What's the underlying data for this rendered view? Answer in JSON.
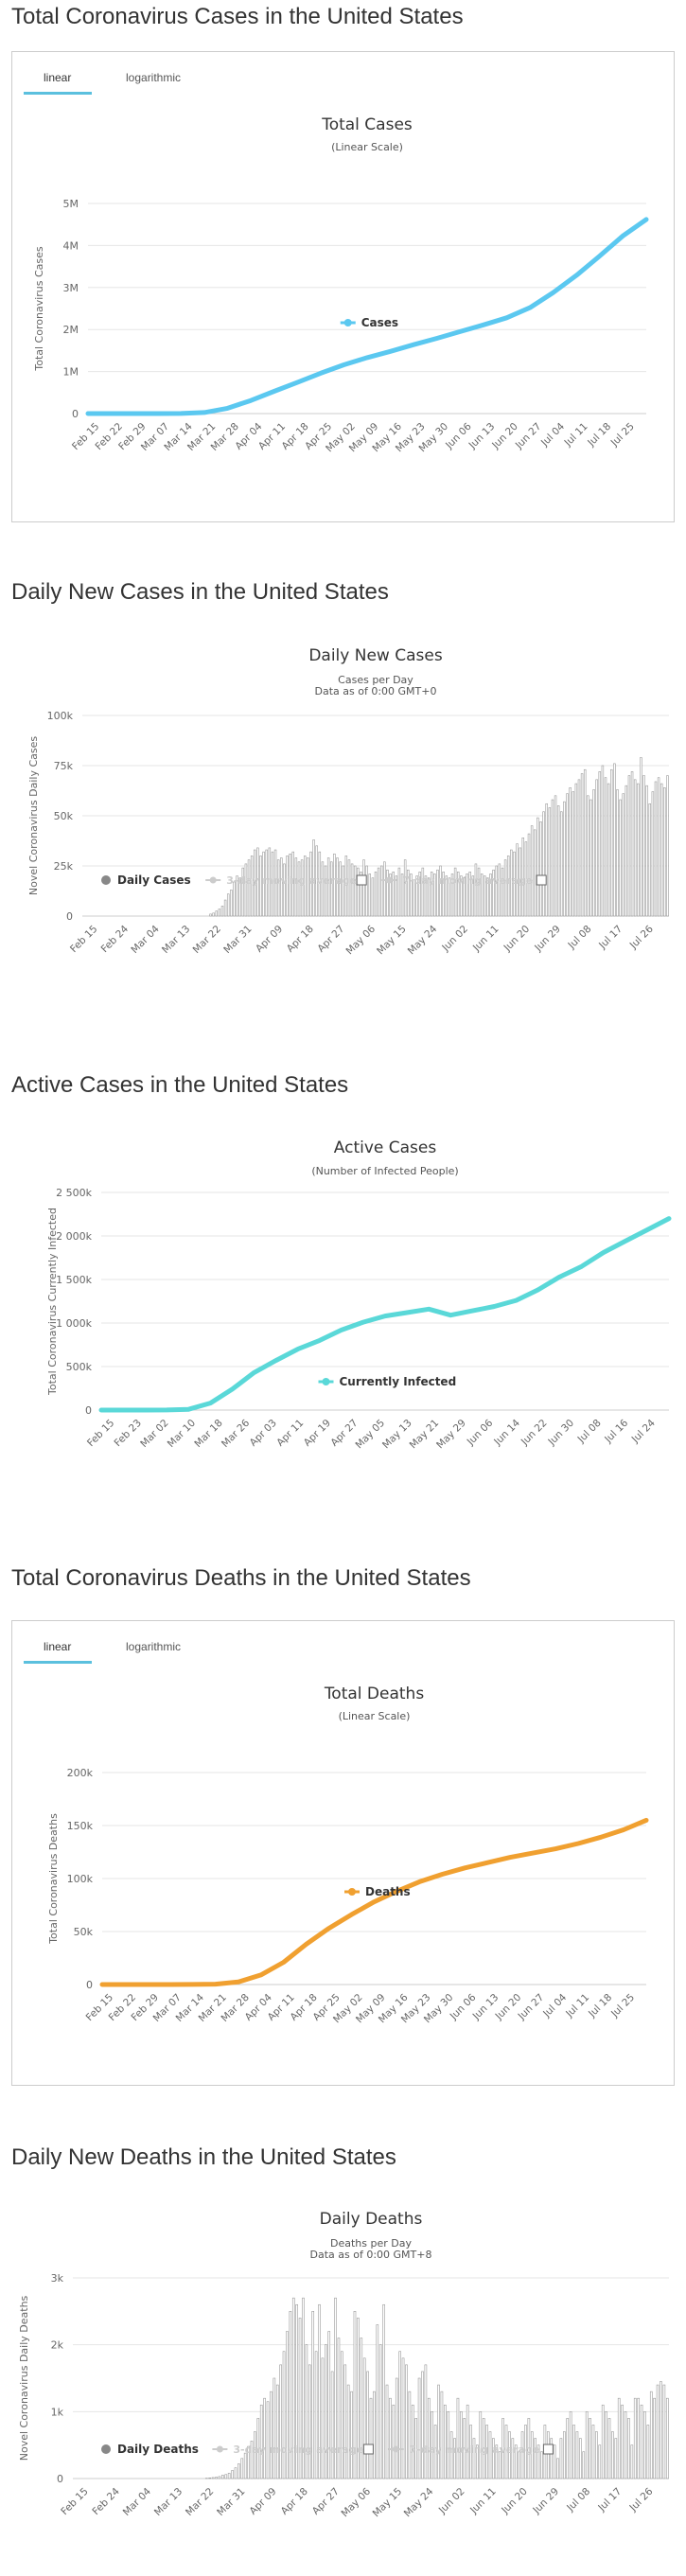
{
  "headings": {
    "cases": "Total Coronavirus Cases in the United States",
    "daily_cases": "Daily New Cases in the United States",
    "active": "Active Cases in the United States",
    "deaths": "Total Coronavirus Deaths in the United States",
    "daily_deaths": "Daily New Deaths in the United States"
  },
  "tabs_cases": {
    "linear": "linear",
    "logarithmic": "logarithmic"
  },
  "tabs_deaths": {
    "linear": "linear",
    "logarithmic": "logarithmic"
  },
  "colors": {
    "cases": "#5bc8f0",
    "active": "#5ad8d8",
    "deaths": "#f0a030",
    "bars": "#999999",
    "tab_accent": "#5bc0de"
  },
  "chart_data": [
    {
      "id": "total_cases",
      "type": "line",
      "title": "Total Cases",
      "subtitle": "(Linear Scale)",
      "ylabel": "Total Coronavirus Cases",
      "ylim": [
        0,
        5000000
      ],
      "yticks": [
        "0",
        "1M",
        "2M",
        "3M",
        "4M",
        "5M"
      ],
      "x_labels": [
        "Feb 15",
        "Feb 22",
        "Feb 29",
        "Mar 07",
        "Mar 14",
        "Mar 21",
        "Mar 28",
        "Apr 04",
        "Apr 11",
        "Apr 18",
        "Apr 25",
        "May 02",
        "May 09",
        "May 16",
        "May 23",
        "May 30",
        "Jun 06",
        "Jun 13",
        "Jun 20",
        "Jun 27",
        "Jul 04",
        "Jul 11",
        "Jul 18",
        "Jul 25"
      ],
      "series": [
        {
          "name": "Cases",
          "values": [
            15,
            35,
            70,
            400,
            2900,
            25000,
            125000,
            310000,
            530000,
            740000,
            960000,
            1160000,
            1330000,
            1480000,
            1640000,
            1790000,
            1950000,
            2110000,
            2280000,
            2520000,
            2880000,
            3290000,
            3750000,
            4230000,
            4620000
          ]
        }
      ],
      "legend": [
        "Cases"
      ]
    },
    {
      "id": "daily_cases",
      "type": "bar",
      "title": "Daily New Cases",
      "subtitle": "Cases per Day",
      "subtitle2": "Data as of 0:00 GMT+0",
      "ylabel": "Novel Coronavirus Daily Cases",
      "ylim": [
        0,
        100000
      ],
      "yticks": [
        "0",
        "25k",
        "50k",
        "75k",
        "100k"
      ],
      "x_labels": [
        "Feb 15",
        "Feb 24",
        "Mar 04",
        "Mar 13",
        "Mar 22",
        "Mar 31",
        "Apr 09",
        "Apr 18",
        "Apr 27",
        "May 06",
        "May 15",
        "May 24",
        "Jun 02",
        "Jun 11",
        "Jun 20",
        "Jun 29",
        "Jul 08",
        "Jul 17",
        "Jul 26"
      ],
      "legend": [
        "Daily Cases",
        "3-day moving average",
        "7-day moving average"
      ],
      "series": [
        {
          "name": "Daily Cases",
          "values": [
            0,
            0,
            0,
            0,
            0,
            0,
            0,
            0,
            0,
            0,
            0,
            0,
            0,
            0,
            0,
            0,
            0,
            0,
            0,
            0,
            0,
            0,
            0,
            0,
            0,
            0,
            0,
            0,
            0,
            0,
            0,
            0,
            0,
            0,
            0,
            0,
            0,
            0,
            0,
            0,
            0,
            0,
            0,
            1000,
            1500,
            2500,
            3500,
            5000,
            8000,
            11000,
            13000,
            17000,
            20000,
            19000,
            24000,
            26000,
            28000,
            30000,
            33000,
            34000,
            30000,
            32000,
            33000,
            34000,
            32000,
            33000,
            28000,
            29000,
            26000,
            30000,
            31000,
            32000,
            29000,
            27000,
            28000,
            30000,
            29000,
            32000,
            38000,
            35000,
            32000,
            27000,
            25000,
            29000,
            27000,
            31000,
            29000,
            27000,
            25000,
            30000,
            28000,
            26000,
            25000,
            24000,
            22000,
            28000,
            25000,
            21000,
            19000,
            22000,
            24000,
            25000,
            27000,
            23000,
            21000,
            22000,
            20000,
            24000,
            21000,
            28000,
            23000,
            21000,
            18000,
            20000,
            22000,
            24000,
            20000,
            19000,
            22000,
            21000,
            23000,
            25000,
            22000,
            20000,
            19000,
            21000,
            24000,
            22000,
            20000,
            19000,
            21000,
            22000,
            20000,
            26000,
            24000,
            21000,
            20000,
            19000,
            21000,
            23000,
            25000,
            26000,
            24000,
            28000,
            30000,
            33000,
            32000,
            36000,
            34000,
            39000,
            37000,
            41000,
            45000,
            43000,
            49000,
            47000,
            52000,
            56000,
            54000,
            58000,
            60000,
            55000,
            52000,
            57000,
            61000,
            64000,
            62000,
            66000,
            68000,
            71000,
            73000,
            60000,
            58000,
            63000,
            68000,
            72000,
            75000,
            69000,
            66000,
            73000,
            76000,
            63000,
            58000,
            61000,
            65000,
            70000,
            72000,
            68000,
            66000,
            79000,
            70000,
            65000,
            56000,
            62000,
            67000,
            69000,
            66000,
            64000,
            70000
          ]
        }
      ]
    },
    {
      "id": "active_cases",
      "type": "line",
      "title": "Active Cases",
      "subtitle": "(Number of Infected People)",
      "ylabel": "Total Coronavirus Currently Infected",
      "ylim": [
        0,
        2500000
      ],
      "yticks": [
        "0",
        "500k",
        "1 000k",
        "1 500k",
        "2 000k",
        "2 500k"
      ],
      "x_labels": [
        "Feb 15",
        "Feb 23",
        "Mar 02",
        "Mar 10",
        "Mar 18",
        "Mar 26",
        "Apr 03",
        "Apr 11",
        "Apr 19",
        "Apr 27",
        "May 05",
        "May 13",
        "May 21",
        "May 29",
        "Jun 06",
        "Jun 14",
        "Jun 22",
        "Jun 30",
        "Jul 08",
        "Jul 16",
        "Jul 24"
      ],
      "series": [
        {
          "name": "Currently Infected",
          "values": [
            10,
            15,
            60,
            600,
            9000,
            80000,
            240000,
            430000,
            570000,
            700000,
            800000,
            920000,
            1010000,
            1080000,
            1120000,
            1160000,
            1090000,
            1140000,
            1190000,
            1260000,
            1380000,
            1530000,
            1650000,
            1810000,
            1940000,
            2070000,
            2200000
          ]
        }
      ],
      "legend": [
        "Currently Infected"
      ]
    },
    {
      "id": "total_deaths",
      "type": "line",
      "title": "Total Deaths",
      "subtitle": "(Linear Scale)",
      "ylabel": "Total Coronavirus Deaths",
      "ylim": [
        0,
        200000
      ],
      "yticks": [
        "0",
        "50k",
        "100k",
        "150k",
        "200k"
      ],
      "x_labels": [
        "Feb 15",
        "Feb 22",
        "Feb 29",
        "Mar 07",
        "Mar 14",
        "Mar 21",
        "Mar 28",
        "Apr 04",
        "Apr 11",
        "Apr 18",
        "Apr 25",
        "May 02",
        "May 09",
        "May 16",
        "May 23",
        "May 30",
        "Jun 06",
        "Jun 13",
        "Jun 20",
        "Jun 27",
        "Jul 04",
        "Jul 11",
        "Jul 18",
        "Jul 25"
      ],
      "series": [
        {
          "name": "Deaths",
          "values": [
            0,
            0,
            0,
            10,
            60,
            400,
            2400,
            9000,
            21000,
            38000,
            53000,
            66000,
            78000,
            88000,
            97000,
            104000,
            110000,
            115000,
            120000,
            124000,
            128000,
            133000,
            139000,
            146000,
            155000
          ]
        }
      ],
      "legend": [
        "Deaths"
      ]
    },
    {
      "id": "daily_deaths",
      "type": "bar",
      "title": "Daily Deaths",
      "subtitle": "Deaths per Day",
      "subtitle2": "Data as of 0:00 GMT+8",
      "ylabel": "Novel Coronavirus Daily Deaths",
      "ylim": [
        0,
        3000
      ],
      "yticks": [
        "0",
        "1k",
        "2k",
        "3k"
      ],
      "x_labels": [
        "Feb 15",
        "Feb 24",
        "Mar 04",
        "Mar 13",
        "Mar 22",
        "Mar 31",
        "Apr 09",
        "Apr 18",
        "Apr 27",
        "May 06",
        "May 15",
        "May 24",
        "Jun 02",
        "Jun 11",
        "Jun 20",
        "Jun 29",
        "Jul 08",
        "Jul 17",
        "Jul 26"
      ],
      "legend": [
        "Daily Deaths",
        "3-day moving average",
        "7-day moving average"
      ],
      "series": [
        {
          "name": "Daily Deaths",
          "values": [
            0,
            0,
            0,
            0,
            0,
            0,
            0,
            0,
            0,
            0,
            0,
            0,
            0,
            0,
            0,
            0,
            0,
            0,
            0,
            0,
            0,
            0,
            0,
            0,
            0,
            0,
            0,
            0,
            0,
            0,
            0,
            0,
            0,
            0,
            0,
            0,
            0,
            0,
            0,
            0,
            0,
            5,
            10,
            15,
            20,
            30,
            50,
            60,
            80,
            120,
            160,
            220,
            300,
            380,
            480,
            560,
            700,
            900,
            1100,
            1200,
            1150,
            1300,
            1500,
            1400,
            1700,
            1900,
            2200,
            2500,
            2700,
            2600,
            2400,
            2700,
            2000,
            1700,
            2500,
            1900,
            2600,
            1800,
            2000,
            2200,
            1600,
            2700,
            2100,
            1900,
            1700,
            1400,
            1300,
            2500,
            2400,
            2100,
            1800,
            1600,
            1200,
            1300,
            2300,
            2000,
            2600,
            1400,
            1200,
            1100,
            1500,
            1900,
            1800,
            1700,
            1300,
            1100,
            900,
            1500,
            1600,
            1700,
            1200,
            1000,
            800,
            1400,
            1300,
            1100,
            1000,
            700,
            600,
            1200,
            1000,
            900,
            1100,
            800,
            600,
            500,
            1000,
            900,
            800,
            700,
            600,
            500,
            400,
            900,
            800,
            700,
            600,
            500,
            400,
            700,
            800,
            900,
            700,
            600,
            500,
            400,
            800,
            700,
            600,
            500,
            300,
            600,
            700,
            900,
            1000,
            800,
            700,
            600,
            400,
            1000,
            900,
            800,
            700,
            500,
            1100,
            1000,
            900,
            700,
            600,
            1200,
            1100,
            1000,
            900,
            500,
            1200,
            1200,
            1100,
            1000,
            800,
            1300,
            1200,
            1400,
            1450,
            1400,
            1200
          ]
        }
      ]
    }
  ]
}
